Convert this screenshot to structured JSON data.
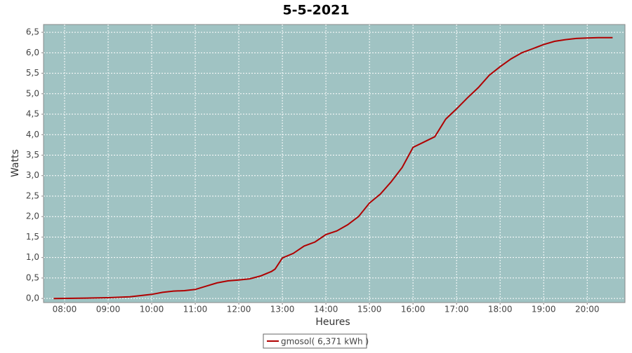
{
  "chart_data": {
    "type": "line",
    "title": "5-5-2021",
    "x_label": "Heures",
    "y_label": "Watts",
    "x": [
      "07:45",
      "08:30",
      "09:00",
      "09:30",
      "10:00",
      "10:15",
      "10:30",
      "10:45",
      "11:00",
      "11:15",
      "11:30",
      "11:45",
      "12:00",
      "12:15",
      "12:30",
      "12:45",
      "12:50",
      "13:00",
      "13:15",
      "13:30",
      "13:45",
      "14:00",
      "14:15",
      "14:30",
      "14:45",
      "15:00",
      "15:15",
      "15:30",
      "15:45",
      "16:00",
      "16:15",
      "16:30",
      "16:45",
      "17:00",
      "17:15",
      "17:30",
      "17:45",
      "18:00",
      "18:15",
      "18:30",
      "18:45",
      "19:00",
      "19:15",
      "19:30",
      "19:45",
      "20:00",
      "20:15",
      "20:35"
    ],
    "series": [
      {
        "name": "gmosol( 6,371 kWh )",
        "color": "#b00000",
        "values": [
          0,
          0.01,
          0.02,
          0.04,
          0.1,
          0.15,
          0.18,
          0.19,
          0.22,
          0.3,
          0.38,
          0.43,
          0.45,
          0.48,
          0.55,
          0.66,
          0.72,
          0.99,
          1.1,
          1.28,
          1.38,
          1.56,
          1.65,
          1.8,
          2.0,
          2.33,
          2.55,
          2.85,
          3.2,
          3.69,
          3.82,
          3.95,
          4.38,
          4.63,
          4.9,
          5.15,
          5.45,
          5.66,
          5.85,
          6.0,
          6.1,
          6.2,
          6.28,
          6.32,
          6.35,
          6.36,
          6.37,
          6.37
        ]
      }
    ],
    "xlim": [
      "07:31",
      "20:52"
    ],
    "xticks": [
      "08:00",
      "09:00",
      "10:00",
      "11:00",
      "12:00",
      "13:00",
      "14:00",
      "15:00",
      "16:00",
      "17:00",
      "18:00",
      "19:00",
      "20:00"
    ],
    "ylim": [
      -0.1,
      6.69
    ],
    "yticks": [
      {
        "value": 0,
        "label": "0,0"
      },
      {
        "value": 0.5,
        "label": "0,5"
      },
      {
        "value": 1,
        "label": "1,0"
      },
      {
        "value": 1.5,
        "label": "1,5"
      },
      {
        "value": 2,
        "label": "2,0"
      },
      {
        "value": 2.5,
        "label": "2,5"
      },
      {
        "value": 3,
        "label": "3,0"
      },
      {
        "value": 3.5,
        "label": "3,5"
      },
      {
        "value": 4,
        "label": "4,0"
      },
      {
        "value": 4.5,
        "label": "4,5"
      },
      {
        "value": 5,
        "label": "5,0"
      },
      {
        "value": 5.5,
        "label": "5,5"
      },
      {
        "value": 6,
        "label": "6,0"
      },
      {
        "value": 6.5,
        "label": "6,5"
      }
    ],
    "grid": true,
    "legend": "bottom",
    "background": "#a0c3c3"
  }
}
